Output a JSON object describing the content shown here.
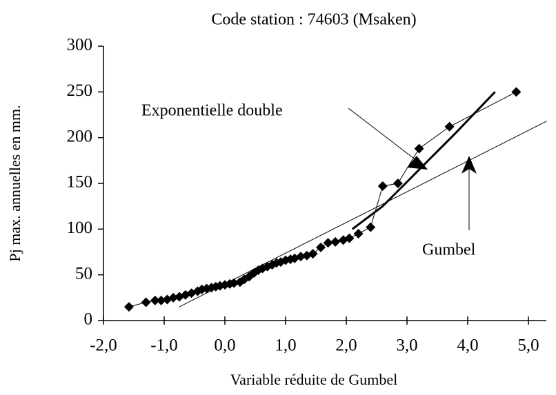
{
  "chart_data": {
    "type": "scatter",
    "title": "Code station : 74603 (Msaken)",
    "x_label": "Variable réduite de Gumbel",
    "y_label": "Pj max. annuelles en mm.",
    "xlim": [
      -2,
      5
    ],
    "ylim": [
      0,
      300
    ],
    "xticks": [
      {
        "value": -2,
        "label": "-2,0"
      },
      {
        "value": -1,
        "label": "-1,0"
      },
      {
        "value": 0,
        "label": "0,0"
      },
      {
        "value": 1,
        "label": "1,0"
      },
      {
        "value": 2,
        "label": "2,0"
      },
      {
        "value": 3,
        "label": "3,0"
      },
      {
        "value": 4,
        "label": "4,0"
      },
      {
        "value": 5,
        "label": "5,0"
      }
    ],
    "yticks": [
      0,
      50,
      100,
      150,
      200,
      250,
      300
    ],
    "color": "#000000",
    "points": {
      "x": [
        -1.58,
        -1.3,
        -1.15,
        -1.05,
        -0.95,
        -0.85,
        -0.75,
        -0.65,
        -0.55,
        -0.45,
        -0.38,
        -0.3,
        -0.22,
        -0.15,
        -0.08,
        0.0,
        0.08,
        0.15,
        0.25,
        0.32,
        0.4,
        0.48,
        0.55,
        0.62,
        0.7,
        0.78,
        0.85,
        0.92,
        1.0,
        1.08,
        1.15,
        1.25,
        1.35,
        1.45,
        1.58,
        1.7,
        1.82,
        1.95,
        2.05,
        2.2,
        2.4,
        2.6,
        2.85,
        3.2,
        3.7,
        4.8
      ],
      "values": [
        15,
        20,
        22,
        22,
        23,
        25,
        26,
        28,
        30,
        32,
        34,
        35,
        36,
        37,
        38,
        39,
        40,
        41,
        42,
        45,
        48,
        52,
        55,
        57,
        59,
        61,
        63,
        64,
        66,
        67,
        68,
        70,
        71,
        73,
        80,
        85,
        86,
        88,
        90,
        95,
        102,
        147,
        150,
        188,
        212,
        250
      ]
    },
    "lines": [
      {
        "name": "Gumbel",
        "x": [
          -0.75,
          5.3
        ],
        "values": [
          15,
          218
        ],
        "width": 1
      },
      {
        "name": "Exponentielle double",
        "x": [
          2.1,
          2.6,
          3.2,
          3.8,
          4.45
        ],
        "values": [
          100,
          125,
          165,
          205,
          250
        ],
        "width": 3
      }
    ]
  }
}
